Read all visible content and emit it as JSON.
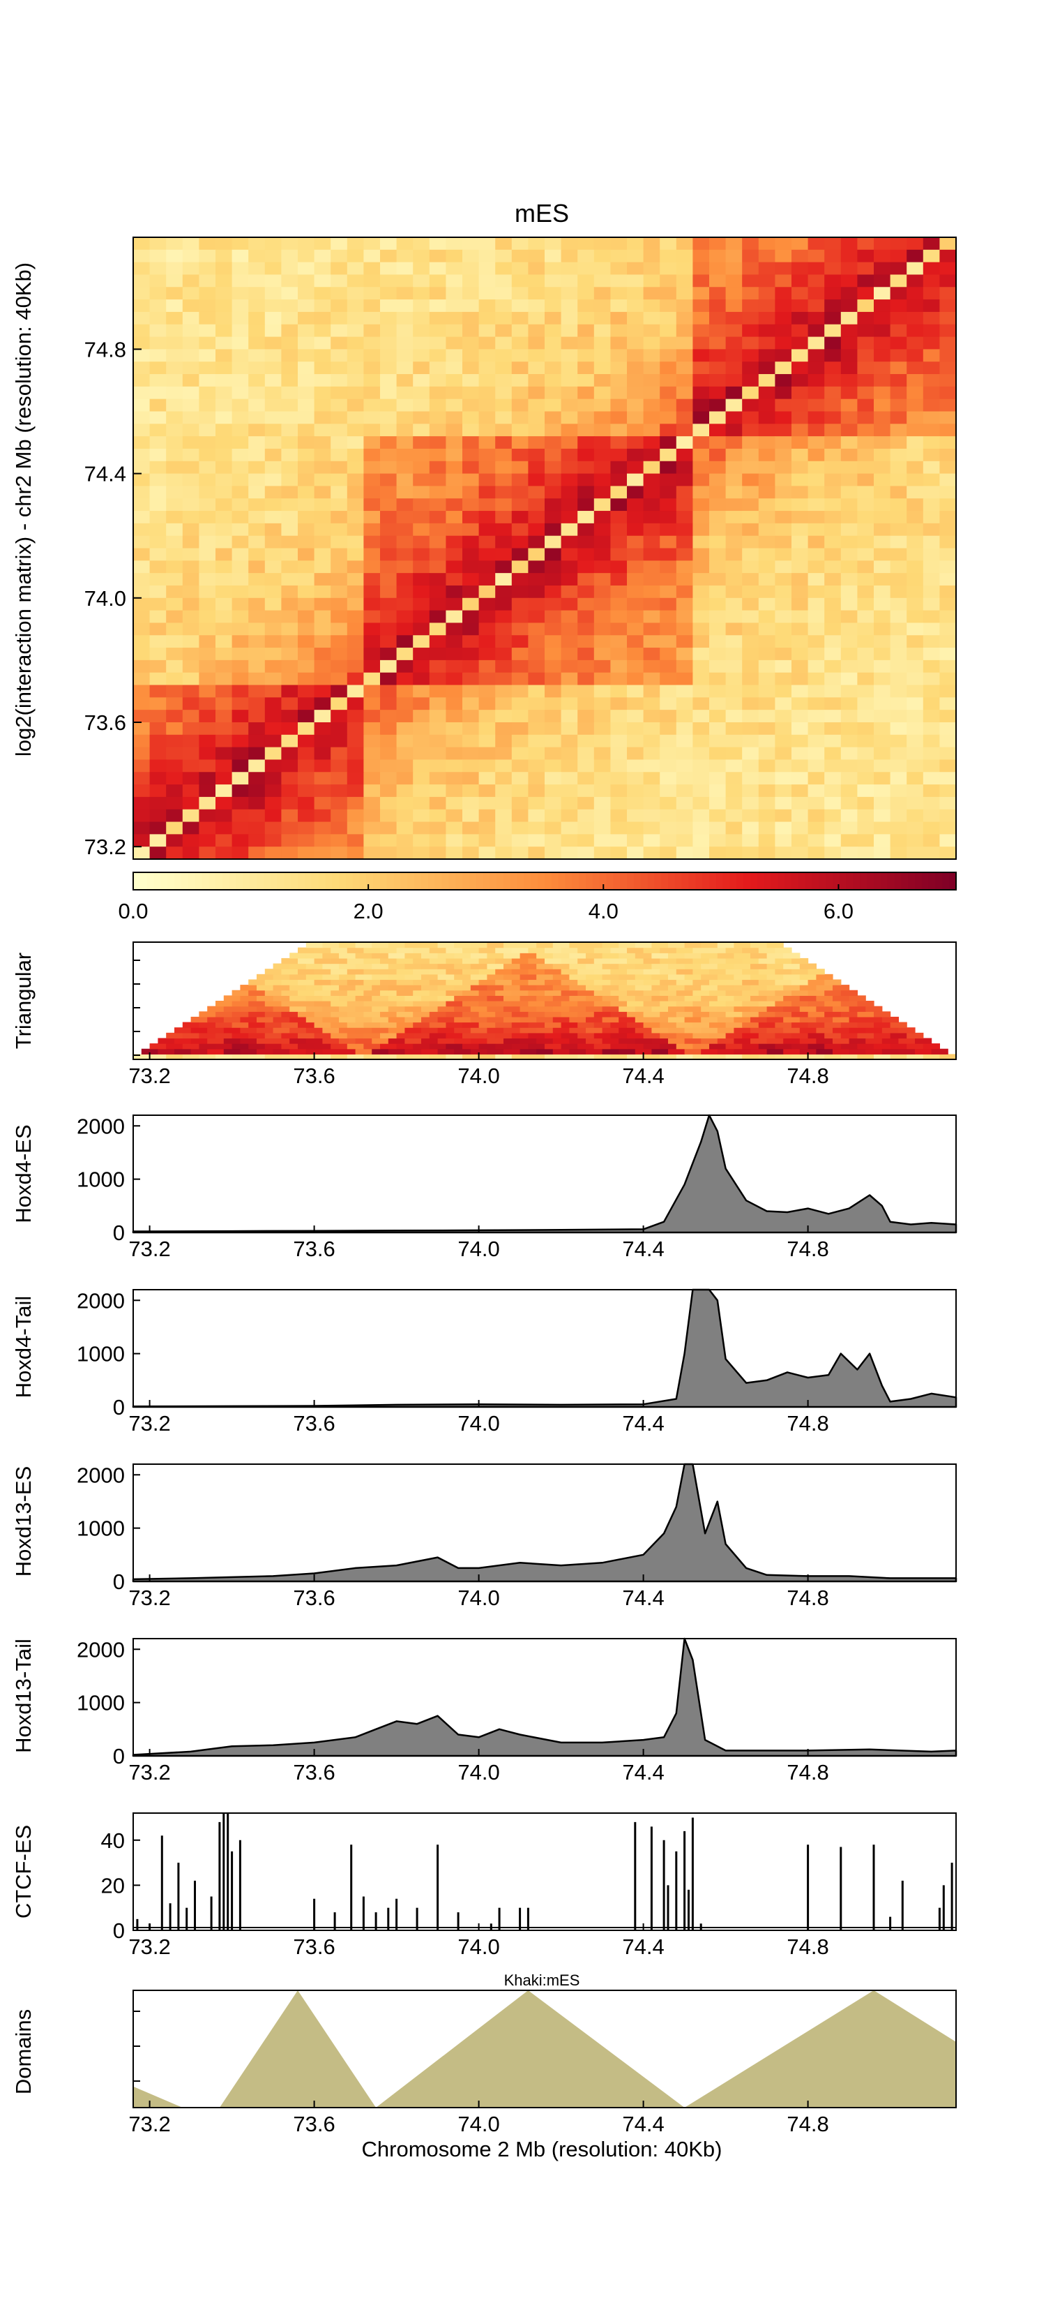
{
  "figure": {
    "title": "mES",
    "heatmap_ylabel": "log2(interaction matrix) - chr2 Mb (resolution: 40Kb)",
    "xlabel": "Chromosome 2 Mb (resolution: 40Kb)"
  },
  "chart_data": [
    {
      "type": "heatmap",
      "title": "mES",
      "ylabel": "log2(interaction matrix) - chr2 Mb (resolution: 40Kb)",
      "axis_range_mb": [
        73.16,
        75.16
      ],
      "y_ticks": [
        "73.2",
        "73.6",
        "74.0",
        "74.4",
        "74.8"
      ],
      "bins": 50,
      "domains_mb": [
        [
          73.16,
          73.72
        ],
        [
          73.72,
          74.5
        ],
        [
          74.5,
          75.16
        ]
      ],
      "colorbar": {
        "min": 0.0,
        "max": 7.0,
        "ticks": [
          "0.0",
          "2.0",
          "4.0",
          "6.0"
        ],
        "colors": [
          "#ffffcc",
          "#fed976",
          "#fd8d3c",
          "#e31a1c",
          "#800026"
        ]
      }
    },
    {
      "type": "heatmap",
      "name": "Triangular",
      "ylabel": "Triangular",
      "x_ticks": [
        "73.2",
        "73.6",
        "74.0",
        "74.4",
        "74.8"
      ]
    },
    {
      "type": "area",
      "ylabel": "Hoxd4-ES",
      "y_ticks": [
        "0",
        "1000",
        "2000"
      ],
      "ylim": [
        0,
        2200
      ],
      "x_ticks": [
        "73.2",
        "73.6",
        "74.0",
        "74.4",
        "74.8"
      ],
      "x": [
        73.16,
        73.4,
        73.6,
        73.8,
        74.0,
        74.2,
        74.4,
        74.45,
        74.5,
        74.52,
        74.54,
        74.56,
        74.58,
        74.6,
        74.65,
        74.7,
        74.75,
        74.8,
        74.85,
        74.9,
        74.95,
        74.98,
        75.0,
        75.05,
        75.1,
        75.16
      ],
      "values": [
        20,
        25,
        30,
        35,
        40,
        50,
        60,
        200,
        900,
        1300,
        1700,
        2200,
        1900,
        1200,
        600,
        400,
        380,
        450,
        350,
        450,
        700,
        500,
        200,
        150,
        180,
        150
      ]
    },
    {
      "type": "area",
      "ylabel": "Hoxd4-Tail",
      "y_ticks": [
        "0",
        "1000",
        "2000"
      ],
      "ylim": [
        0,
        2200
      ],
      "x_ticks": [
        "73.2",
        "73.6",
        "74.0",
        "74.4",
        "74.8"
      ],
      "x": [
        73.16,
        73.4,
        73.6,
        73.8,
        74.0,
        74.2,
        74.4,
        74.48,
        74.5,
        74.52,
        74.54,
        74.56,
        74.58,
        74.6,
        74.65,
        74.7,
        74.75,
        74.8,
        74.85,
        74.88,
        74.92,
        74.95,
        74.98,
        75.0,
        75.05,
        75.1,
        75.16
      ],
      "values": [
        10,
        15,
        20,
        40,
        50,
        40,
        50,
        150,
        1000,
        2200,
        2200,
        2200,
        2000,
        900,
        450,
        500,
        650,
        550,
        600,
        1000,
        700,
        1000,
        400,
        100,
        150,
        250,
        180
      ]
    },
    {
      "type": "area",
      "ylabel": "Hoxd13-ES",
      "y_ticks": [
        "0",
        "1000",
        "2000"
      ],
      "ylim": [
        0,
        2200
      ],
      "x_ticks": [
        "73.2",
        "73.6",
        "74.0",
        "74.4",
        "74.8"
      ],
      "x": [
        73.16,
        73.3,
        73.4,
        73.5,
        73.6,
        73.7,
        73.8,
        73.9,
        73.95,
        74.0,
        74.1,
        74.2,
        74.3,
        74.4,
        74.45,
        74.48,
        74.5,
        74.52,
        74.55,
        74.58,
        74.6,
        74.65,
        74.7,
        74.8,
        74.9,
        75.0,
        75.16
      ],
      "values": [
        40,
        60,
        80,
        100,
        150,
        250,
        300,
        450,
        250,
        250,
        350,
        300,
        350,
        500,
        900,
        1400,
        2200,
        2200,
        900,
        1500,
        700,
        250,
        120,
        100,
        100,
        60,
        60
      ]
    },
    {
      "type": "area",
      "ylabel": "Hoxd13-Tail",
      "y_ticks": [
        "0",
        "1000",
        "2000"
      ],
      "ylim": [
        0,
        2200
      ],
      "x_ticks": [
        "73.2",
        "73.6",
        "74.0",
        "74.4",
        "74.8"
      ],
      "x": [
        73.16,
        73.3,
        73.4,
        73.5,
        73.6,
        73.7,
        73.75,
        73.8,
        73.85,
        73.9,
        73.95,
        74.0,
        74.05,
        74.1,
        74.2,
        74.3,
        74.4,
        74.45,
        74.48,
        74.5,
        74.52,
        74.55,
        74.6,
        74.8,
        74.95,
        75.1,
        75.16
      ],
      "values": [
        20,
        80,
        180,
        200,
        250,
        350,
        500,
        650,
        600,
        750,
        400,
        350,
        500,
        400,
        250,
        250,
        300,
        350,
        800,
        2200,
        1800,
        300,
        100,
        100,
        120,
        80,
        100
      ]
    },
    {
      "type": "bar",
      "ylabel": "CTCF-ES",
      "y_ticks": [
        "0",
        "20",
        "40"
      ],
      "ylim": [
        0,
        52
      ],
      "x_ticks": [
        "73.2",
        "73.6",
        "74.0",
        "74.4",
        "74.8"
      ],
      "x": [
        73.17,
        73.2,
        73.23,
        73.25,
        73.27,
        73.29,
        73.31,
        73.35,
        73.37,
        73.38,
        73.39,
        73.4,
        73.42,
        73.6,
        73.65,
        73.69,
        73.72,
        73.75,
        73.78,
        73.8,
        73.85,
        73.9,
        73.95,
        74.03,
        74.05,
        74.1,
        74.12,
        74.38,
        74.42,
        74.45,
        74.46,
        74.48,
        74.5,
        74.51,
        74.52,
        74.54,
        74.8,
        74.88,
        74.96,
        75.0,
        75.03,
        75.12,
        75.13,
        75.15
      ],
      "values": [
        5,
        3,
        42,
        12,
        30,
        10,
        22,
        15,
        48,
        52,
        52,
        35,
        40,
        14,
        8,
        38,
        15,
        8,
        10,
        14,
        10,
        38,
        8,
        3,
        10,
        10,
        10,
        48,
        46,
        40,
        20,
        35,
        44,
        18,
        50,
        3,
        38,
        37,
        38,
        6,
        22,
        10,
        20,
        30
      ]
    },
    {
      "type": "area",
      "ylabel": "Domains",
      "title": "Khaki:mES",
      "x_ticks": [
        "73.2",
        "73.6",
        "74.0",
        "74.4",
        "74.8"
      ],
      "x": [
        73.16,
        73.28,
        73.37,
        73.56,
        73.75,
        74.12,
        74.5,
        74.96,
        75.16
      ],
      "values": [
        0.18,
        0.0,
        0.0,
        1.0,
        0.0,
        1.0,
        0.0,
        1.0,
        0.56
      ]
    }
  ]
}
